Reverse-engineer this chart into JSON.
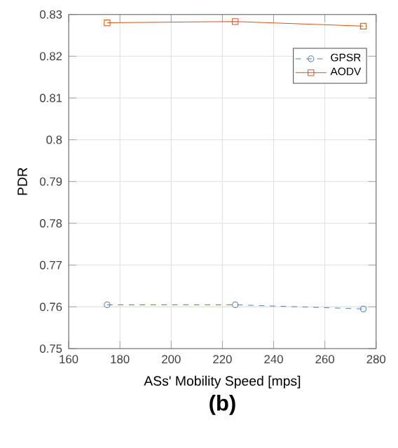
{
  "chart_data": {
    "type": "line",
    "xlabel": "ASs' Mobility Speed [mps]",
    "ylabel": "PDR",
    "x": [
      175,
      225,
      275
    ],
    "series": [
      {
        "name": "GPSR",
        "color": "#4f81bd",
        "values": [
          0.7605,
          0.7605,
          0.7595
        ],
        "marker": "circle",
        "line_style": "dashed"
      },
      {
        "name": "AODV",
        "color": "#d95319",
        "values": [
          0.828,
          0.8283,
          0.8272
        ],
        "marker": "square",
        "line_style": "solid"
      }
    ],
    "xlim": [
      160,
      280
    ],
    "xticks": [
      160,
      180,
      200,
      220,
      240,
      260,
      280
    ],
    "ylim": [
      0.75,
      0.83
    ],
    "yticks": [
      0.75,
      0.76,
      0.77,
      0.78,
      0.79,
      0.8,
      0.81,
      0.82,
      0.83
    ],
    "grid": true,
    "legend": "top right",
    "annotations": [
      "(b)"
    ]
  }
}
